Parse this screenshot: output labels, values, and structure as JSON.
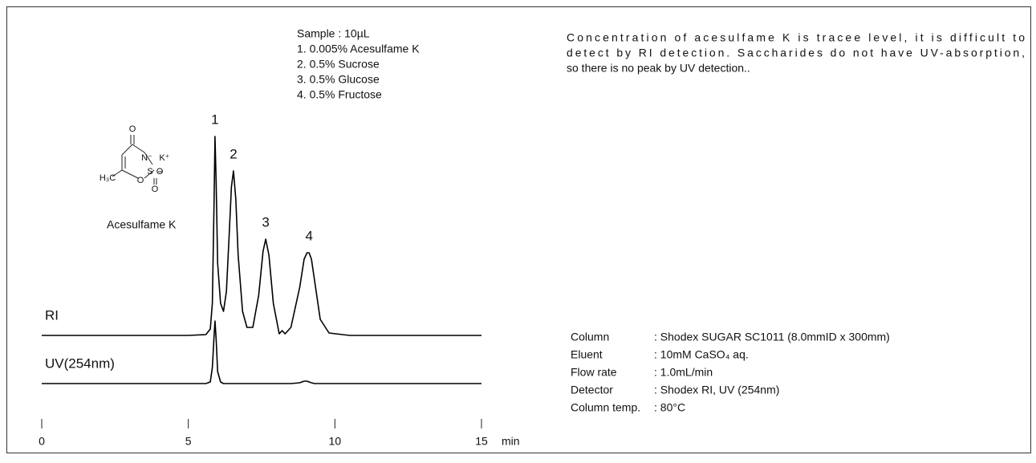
{
  "chart_data": {
    "type": "line",
    "xlabel": "min",
    "xlim": [
      0,
      15
    ],
    "xticks": [
      0,
      5,
      10,
      15
    ],
    "x": [
      0,
      1,
      2,
      3,
      4,
      5,
      5.6,
      5.75,
      5.82,
      5.88,
      5.91,
      5.95,
      6.0,
      6.1,
      6.2,
      6.3,
      6.4,
      6.47,
      6.54,
      6.62,
      6.7,
      6.85,
      7.0,
      7.2,
      7.4,
      7.55,
      7.64,
      7.75,
      7.9,
      8.1,
      8.2,
      8.3,
      8.5,
      8.8,
      8.95,
      9.05,
      9.12,
      9.2,
      9.3,
      9.5,
      9.8,
      10.5,
      12,
      14,
      15
    ],
    "series": [
      {
        "name": "RI",
        "color": "#000000",
        "values": [
          0,
          0,
          0,
          0,
          0,
          0,
          1,
          8,
          40,
          170,
          248,
          190,
          90,
          40,
          30,
          55,
          130,
          185,
          205,
          170,
          100,
          30,
          10,
          10,
          50,
          105,
          120,
          100,
          40,
          2,
          6,
          2,
          10,
          60,
          95,
          103,
          103,
          95,
          70,
          20,
          3,
          0,
          0,
          0,
          0
        ]
      },
      {
        "name": "UV(254nm)",
        "color": "#000000",
        "values": [
          0,
          0,
          0,
          0,
          0,
          0,
          0,
          2,
          20,
          60,
          78,
          55,
          15,
          2,
          0,
          0,
          0,
          0,
          0,
          0,
          0,
          0,
          0,
          0,
          0,
          0,
          0,
          0,
          0,
          0,
          0,
          0,
          0,
          1,
          3,
          3,
          2,
          1,
          0,
          0,
          0,
          0,
          0,
          0,
          0
        ]
      }
    ],
    "peak_labels": [
      {
        "text": "1",
        "x": 5.91
      },
      {
        "text": "2",
        "x": 6.54
      },
      {
        "text": "3",
        "x": 7.64
      },
      {
        "text": "4",
        "x": 9.12
      }
    ],
    "sample": [
      "Sample : 10µL",
      "1. 0.005% Acesulfame K",
      "2. 0.5% Sucrose",
      "3. 0.5% Glucose",
      "4. 0.5% Fructose"
    ],
    "structure": {
      "name": "Acesulfame K",
      "atoms": [
        "O",
        "N⁻",
        "K⁺",
        "S",
        "O",
        "O",
        "O",
        "H₃C"
      ]
    }
  },
  "description": [
    "Concentration of acesulfame K is tracee level, it is difficult to",
    "detect by RI detection.  Saccharides do not have UV-absorption,",
    "so there is no peak by UV detection.."
  ],
  "conditions": [
    [
      "Column",
      ": Shodex SUGAR SC1011 (8.0mmID x 300mm)"
    ],
    [
      "Eluent",
      ": 10mM CaSO₄ aq."
    ],
    [
      "Flow rate",
      ": 1.0mL/min"
    ],
    [
      "Detector",
      ": Shodex RI, UV (254nm)"
    ],
    [
      "Column temp.",
      ": 80°C"
    ]
  ]
}
